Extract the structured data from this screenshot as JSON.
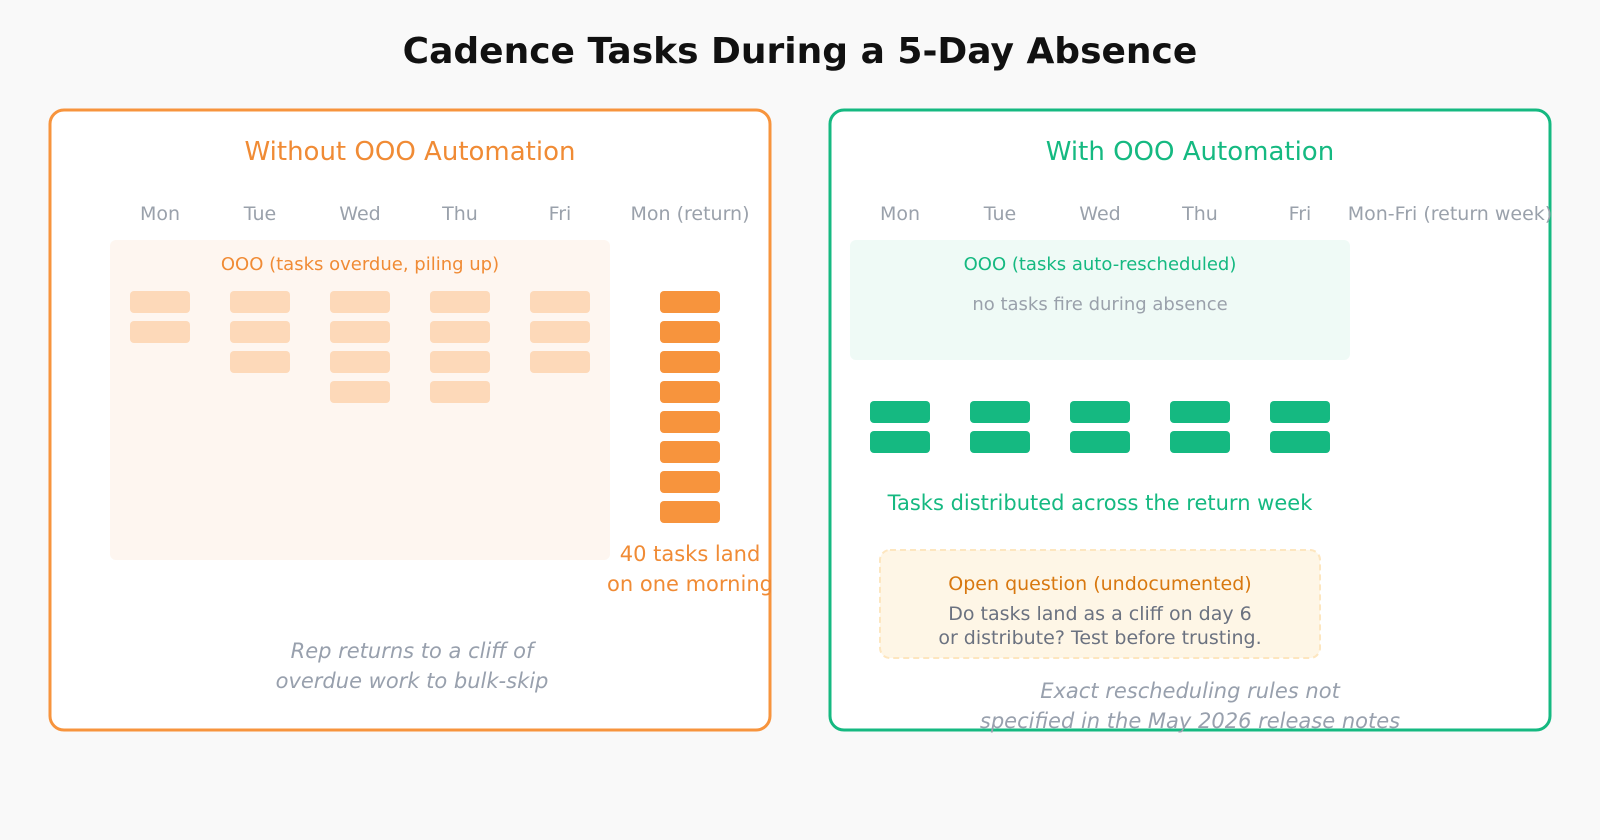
{
  "title": "Cadence Tasks During a 5-Day Absence",
  "colors": {
    "background": "#f9f9f9",
    "title": "#111111",
    "orange": "#f7943d",
    "orange_text": "#f08b35",
    "orange_light": "#fdd9b9",
    "orange_zone": "#fef6f0",
    "green": "#15b981",
    "green_zone": "#effaf6",
    "gray_text": "#9aa1ab",
    "note_text": "#98a0ad",
    "question_fill": "#fef6e6",
    "question_stroke": "#fde6bf",
    "question_title": "#d8780f",
    "question_body": "#6b7280"
  },
  "left": {
    "heading": "Without OOO Automation",
    "days": [
      "Mon",
      "Tue",
      "Wed",
      "Thu",
      "Fri"
    ],
    "return_day": "Mon (return)",
    "zone_label": "OOO (tasks overdue, piling up)",
    "daily_task_counts": [
      2,
      3,
      4,
      4,
      3
    ],
    "return_stack_count": 8,
    "callout": [
      "40 tasks land",
      "on one morning"
    ],
    "footer": [
      "Rep returns to a cliff of",
      "overdue work to bulk-skip"
    ]
  },
  "right": {
    "heading": "With OOO Automation",
    "days": [
      "Mon",
      "Tue",
      "Wed",
      "Thu",
      "Fri"
    ],
    "return_day": "Mon-Fri (return week)",
    "zone_label": "OOO (tasks auto-rescheduled)",
    "zone_sub": "no tasks fire during absence",
    "daily_task_counts": [
      2,
      2,
      2,
      2,
      2
    ],
    "distributed_label": "Tasks distributed across the return week",
    "question": {
      "title": "Open question (undocumented)",
      "lines": [
        "Do tasks land as a cliff on day 6",
        "or distribute? Test before trusting."
      ]
    },
    "footer": [
      "Exact rescheduling rules not",
      "specified in the May 2026 release notes"
    ]
  }
}
